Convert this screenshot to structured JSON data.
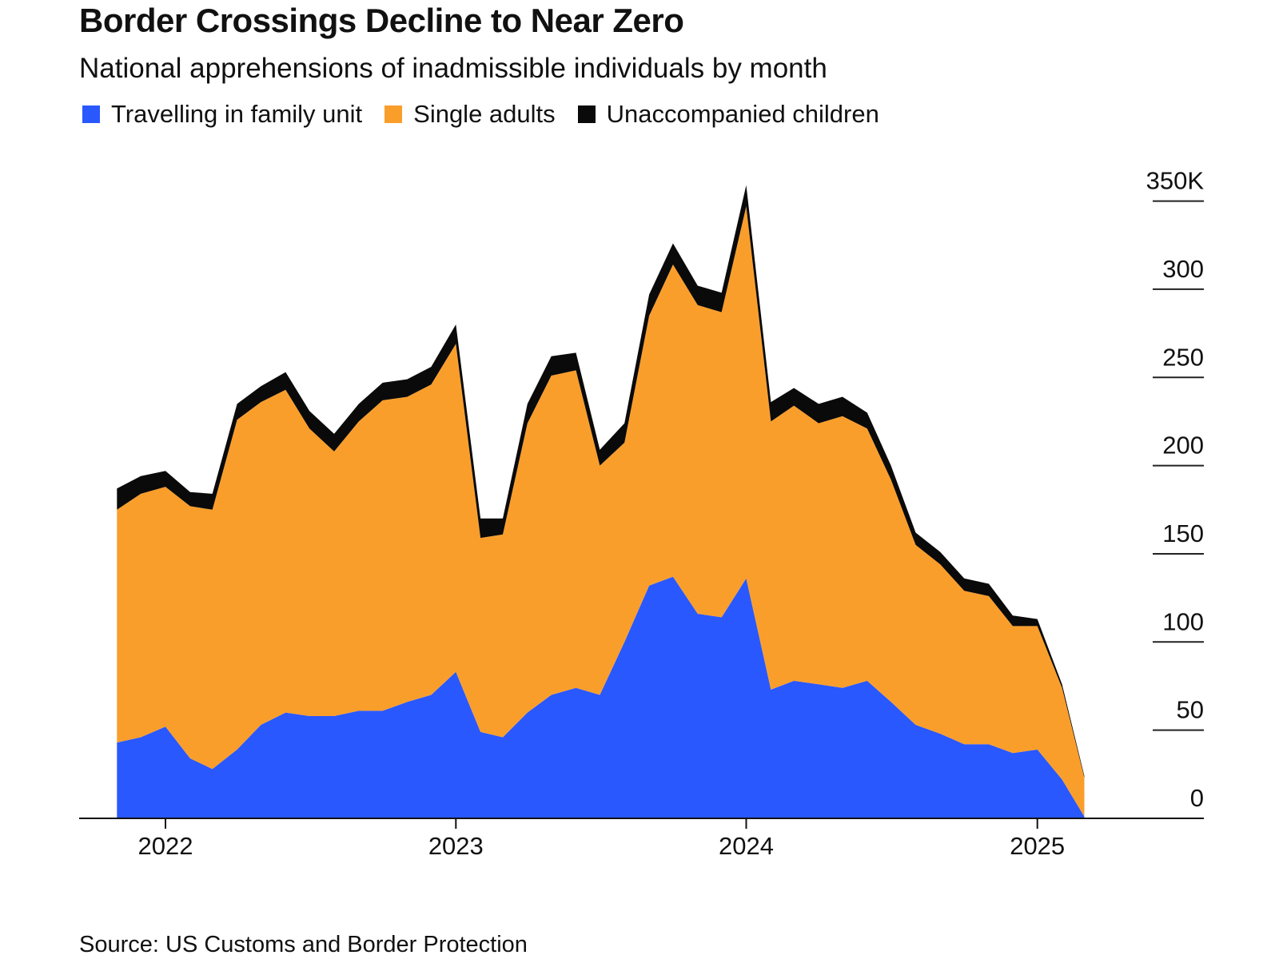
{
  "chart_data": {
    "type": "area",
    "stacked": true,
    "title": "Border Crossings Decline to Near Zero",
    "subtitle": "National apprehensions of inadmissible individuals by month",
    "source": "Source: US Customs and Border Protection",
    "legend_position": "top-left",
    "grid": false,
    "x_start": "2021-11",
    "x_end": "2025-03",
    "x_ticks": [
      {
        "date": "2022-01",
        "label": "2022"
      },
      {
        "date": "2023-01",
        "label": "2023"
      },
      {
        "date": "2024-01",
        "label": "2024"
      },
      {
        "date": "2025-01",
        "label": "2025"
      }
    ],
    "y_axis": {
      "position": "right",
      "ylim": [
        0,
        350
      ]
    },
    "y_ticks": [
      {
        "value": 0,
        "label": "0"
      },
      {
        "value": 50,
        "label": "50"
      },
      {
        "value": 100,
        "label": "100"
      },
      {
        "value": 150,
        "label": "150"
      },
      {
        "value": 200,
        "label": "200"
      },
      {
        "value": 250,
        "label": "250"
      },
      {
        "value": 300,
        "label": "300"
      },
      {
        "value": 350,
        "label": "350K"
      }
    ],
    "x": [
      "2021-11",
      "2021-12",
      "2022-01",
      "2022-02",
      "2022-03",
      "2022-04",
      "2022-05",
      "2022-06",
      "2022-07",
      "2022-08",
      "2022-09",
      "2022-10",
      "2022-11",
      "2022-12",
      "2023-01",
      "2023-02",
      "2023-03",
      "2023-04",
      "2023-05",
      "2023-06",
      "2023-07",
      "2023-08",
      "2023-09",
      "2023-10",
      "2023-11",
      "2023-12",
      "2024-01",
      "2024-02",
      "2024-03",
      "2024-04",
      "2024-05",
      "2024-06",
      "2024-07",
      "2024-08",
      "2024-09",
      "2024-10",
      "2024-11",
      "2024-12",
      "2025-01",
      "2025-02",
      "2025-03"
    ],
    "series": [
      {
        "name": "Travelling in family unit",
        "color": "#2958ff",
        "values": [
          43,
          46,
          52,
          34,
          28,
          39,
          53,
          60,
          58,
          58,
          61,
          61,
          66,
          70,
          83,
          49,
          46,
          60,
          70,
          74,
          70,
          100,
          132,
          137,
          116,
          114,
          136,
          73,
          78,
          76,
          74,
          78,
          66,
          53,
          48,
          42,
          42,
          37,
          39,
          22,
          1
        ]
      },
      {
        "name": "Single adults",
        "color": "#fa9e2b",
        "values": [
          132,
          138,
          136,
          143,
          147,
          187,
          183,
          183,
          163,
          150,
          164,
          176,
          173,
          176,
          186,
          110,
          115,
          164,
          181,
          180,
          130,
          113,
          153,
          177,
          175,
          173,
          211,
          152,
          156,
          148,
          154,
          143,
          126,
          102,
          96,
          87,
          84,
          72,
          70,
          52,
          22
        ]
      },
      {
        "name": "Unaccompanied children",
        "color": "#0a0a0a",
        "values": [
          12,
          10,
          9,
          8,
          9,
          9,
          9,
          10,
          10,
          10,
          10,
          10,
          10,
          10,
          11,
          11,
          9,
          11,
          11,
          10,
          9,
          11,
          12,
          12,
          11,
          11,
          12,
          11,
          10,
          11,
          11,
          9,
          8,
          7,
          7,
          7,
          7,
          6,
          4,
          2,
          1
        ]
      }
    ]
  }
}
